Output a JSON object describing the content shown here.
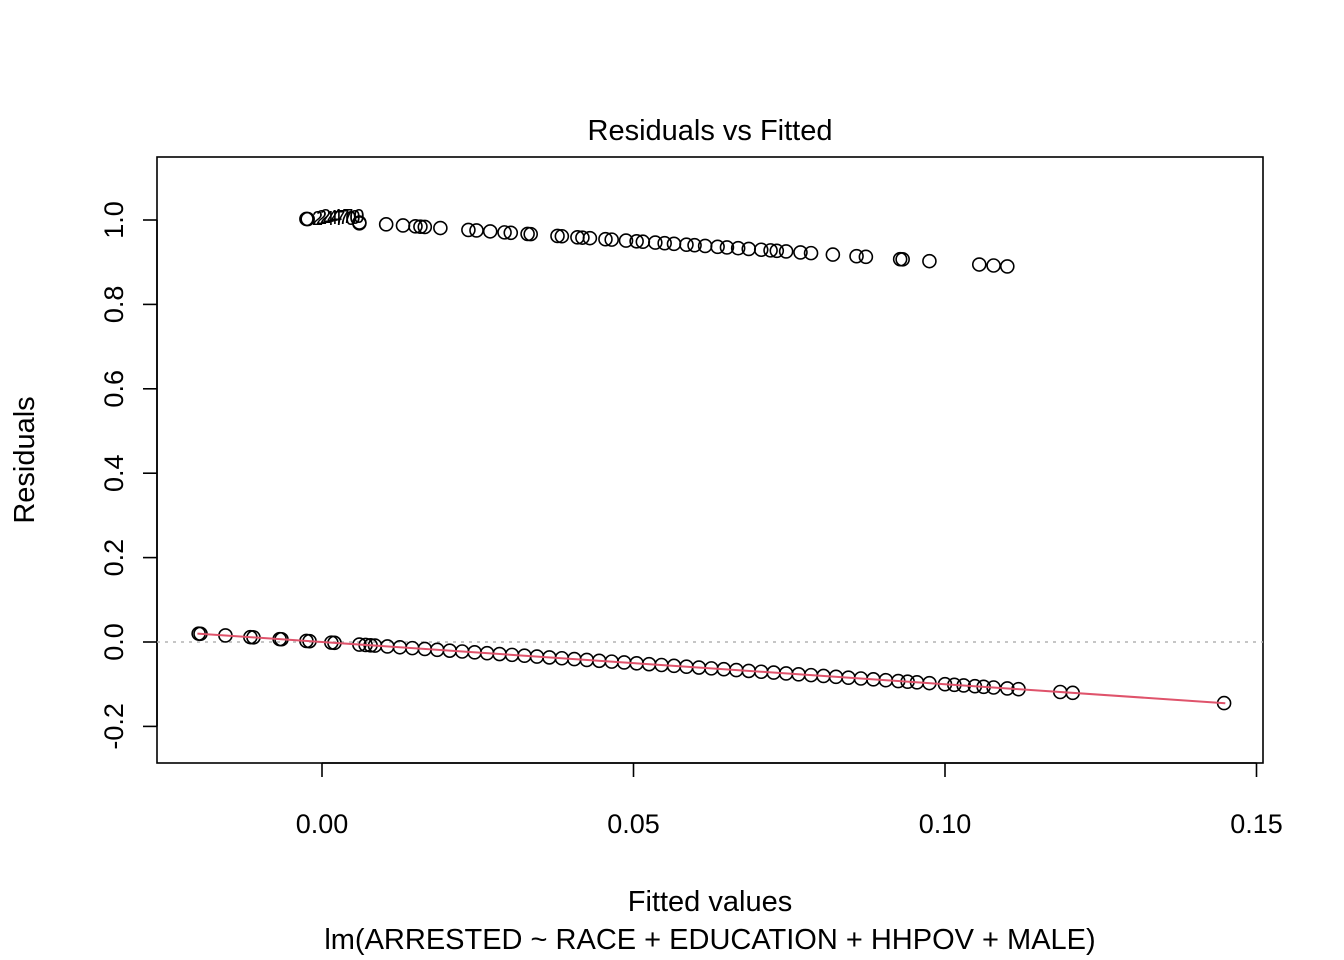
{
  "chart_data": {
    "type": "scatter",
    "title": "Residuals vs Fitted",
    "xlabel": "Fitted values",
    "subtitle": "lm(ARRESTED ~ RACE + EDUCATION + HHPOV + MALE)",
    "ylabel": "Residuals",
    "xlim": [
      -0.027,
      0.151
    ],
    "ylim": [
      -0.29,
      1.15
    ],
    "xticks": [
      0.0,
      0.05,
      0.1,
      0.15
    ],
    "xtick_labels": [
      "0.00",
      "0.05",
      "0.10",
      "0.15"
    ],
    "yticks": [
      -0.2,
      0.0,
      0.2,
      0.4,
      0.6,
      0.8,
      1.0
    ],
    "ytick_labels": [
      "-0.2",
      "0.0",
      "0.2",
      "0.4",
      "0.6",
      "0.8",
      "1.0"
    ],
    "reference_line": {
      "y": 0,
      "style": "dotted",
      "color": "#b3b3b3"
    },
    "smoother": {
      "color": "#DF536B",
      "x": [
        -0.02,
        0.0,
        0.05,
        0.1,
        0.145
      ],
      "y": [
        0.02,
        0.0,
        -0.05,
        -0.1,
        -0.145
      ]
    },
    "point_labels": [
      "2470",
      "2470",
      "2470"
    ],
    "series": [
      {
        "points_upper": [
          [
            -0.0025,
            1.0025
          ],
          [
            -0.0023,
            1.0023
          ],
          [
            0.006,
            0.994
          ],
          [
            0.006,
            0.992
          ],
          [
            0.0103,
            0.9897
          ],
          [
            0.013,
            0.987
          ],
          [
            0.015,
            0.985
          ],
          [
            0.0158,
            0.9842
          ],
          [
            0.0165,
            0.9835
          ],
          [
            0.019,
            0.981
          ],
          [
            0.0235,
            0.9765
          ],
          [
            0.0248,
            0.9752
          ],
          [
            0.027,
            0.973
          ],
          [
            0.0293,
            0.9707
          ],
          [
            0.0303,
            0.9697
          ],
          [
            0.033,
            0.967
          ],
          [
            0.0335,
            0.9665
          ],
          [
            0.0378,
            0.9622
          ],
          [
            0.0385,
            0.9615
          ],
          [
            0.041,
            0.959
          ],
          [
            0.0418,
            0.9582
          ],
          [
            0.043,
            0.957
          ],
          [
            0.0455,
            0.9545
          ],
          [
            0.0465,
            0.9535
          ],
          [
            0.0488,
            0.9512
          ],
          [
            0.0505,
            0.9495
          ],
          [
            0.0515,
            0.9485
          ],
          [
            0.0535,
            0.9465
          ],
          [
            0.055,
            0.945
          ],
          [
            0.0565,
            0.9435
          ],
          [
            0.0585,
            0.9415
          ],
          [
            0.0598,
            0.9402
          ],
          [
            0.0615,
            0.9385
          ],
          [
            0.0635,
            0.9365
          ],
          [
            0.065,
            0.935
          ],
          [
            0.0668,
            0.9332
          ],
          [
            0.0685,
            0.9315
          ],
          [
            0.0705,
            0.9295
          ],
          [
            0.072,
            0.928
          ],
          [
            0.073,
            0.927
          ],
          [
            0.0745,
            0.9255
          ],
          [
            0.0768,
            0.9232
          ],
          [
            0.0785,
            0.9215
          ],
          [
            0.082,
            0.918
          ],
          [
            0.0858,
            0.9142
          ],
          [
            0.0873,
            0.9127
          ],
          [
            0.0928,
            0.9072
          ],
          [
            0.0932,
            0.9068
          ],
          [
            0.0975,
            0.9025
          ],
          [
            0.1055,
            0.8945
          ],
          [
            0.1078,
            0.8922
          ],
          [
            0.11,
            0.89
          ]
        ],
        "points_lower": [
          [
            -0.0198,
            0.0198
          ],
          [
            -0.0195,
            0.0195
          ],
          [
            -0.0155,
            0.0155
          ],
          [
            -0.0115,
            0.0115
          ],
          [
            -0.011,
            0.011
          ],
          [
            -0.0068,
            0.0068
          ],
          [
            -0.0065,
            0.0065
          ],
          [
            -0.0025,
            0.0025
          ],
          [
            -0.002,
            0.002
          ],
          [
            0.0015,
            -0.0015
          ],
          [
            0.002,
            -0.002
          ],
          [
            0.006,
            -0.006
          ],
          [
            0.007,
            -0.007
          ],
          [
            0.0078,
            -0.0078
          ],
          [
            0.0085,
            -0.0085
          ],
          [
            0.0105,
            -0.0105
          ],
          [
            0.0125,
            -0.0125
          ],
          [
            0.0145,
            -0.0145
          ],
          [
            0.0165,
            -0.0165
          ],
          [
            0.0185,
            -0.0185
          ],
          [
            0.0205,
            -0.0205
          ],
          [
            0.0225,
            -0.0225
          ],
          [
            0.0245,
            -0.0245
          ],
          [
            0.0265,
            -0.0265
          ],
          [
            0.0285,
            -0.0285
          ],
          [
            0.0305,
            -0.0305
          ],
          [
            0.0325,
            -0.0325
          ],
          [
            0.0345,
            -0.0345
          ],
          [
            0.0365,
            -0.0365
          ],
          [
            0.0385,
            -0.0385
          ],
          [
            0.0405,
            -0.0405
          ],
          [
            0.0425,
            -0.0425
          ],
          [
            0.0445,
            -0.0445
          ],
          [
            0.0465,
            -0.0465
          ],
          [
            0.0485,
            -0.0485
          ],
          [
            0.0505,
            -0.0505
          ],
          [
            0.0525,
            -0.0525
          ],
          [
            0.0545,
            -0.0545
          ],
          [
            0.0565,
            -0.0565
          ],
          [
            0.0585,
            -0.0585
          ],
          [
            0.0605,
            -0.0605
          ],
          [
            0.0625,
            -0.0625
          ],
          [
            0.0645,
            -0.0645
          ],
          [
            0.0665,
            -0.0665
          ],
          [
            0.0685,
            -0.0685
          ],
          [
            0.0705,
            -0.0705
          ],
          [
            0.0725,
            -0.0725
          ],
          [
            0.0745,
            -0.0745
          ],
          [
            0.0765,
            -0.0765
          ],
          [
            0.0785,
            -0.0785
          ],
          [
            0.0805,
            -0.0805
          ],
          [
            0.0825,
            -0.0825
          ],
          [
            0.0845,
            -0.0845
          ],
          [
            0.0865,
            -0.0865
          ],
          [
            0.0885,
            -0.0885
          ],
          [
            0.0905,
            -0.0905
          ],
          [
            0.0925,
            -0.0925
          ],
          [
            0.094,
            -0.094
          ],
          [
            0.0955,
            -0.0955
          ],
          [
            0.0975,
            -0.0975
          ],
          [
            0.1,
            -0.1
          ],
          [
            0.1015,
            -0.1015
          ],
          [
            0.103,
            -0.103
          ],
          [
            0.1048,
            -0.1048
          ],
          [
            0.1062,
            -0.1062
          ],
          [
            0.1078,
            -0.1078
          ],
          [
            0.11,
            -0.11
          ],
          [
            0.1118,
            -0.1118
          ],
          [
            0.1185,
            -0.1185
          ],
          [
            0.1205,
            -0.1205
          ],
          [
            0.1448,
            -0.1448
          ]
        ]
      }
    ]
  }
}
